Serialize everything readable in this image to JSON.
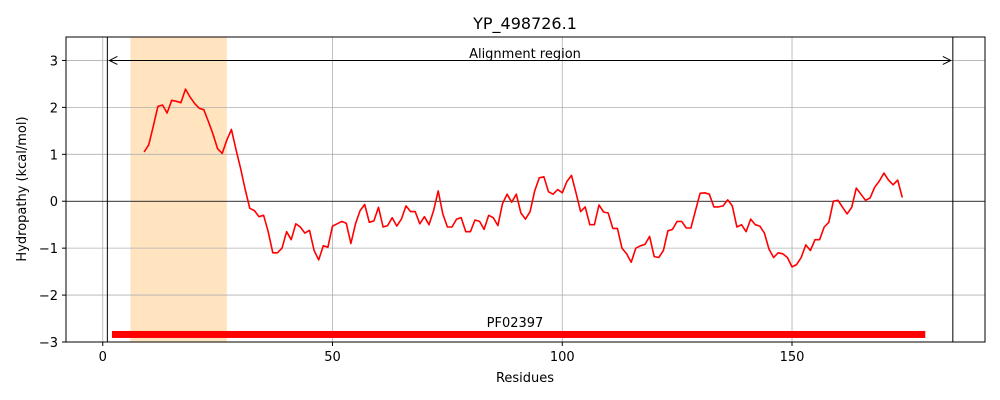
{
  "chart_data": {
    "type": "line",
    "title": "YP_498726.1",
    "xlabel": "Residues",
    "ylabel": "Hydropathy (kcal/mol)",
    "xlim": [
      -8,
      192
    ],
    "ylim": [
      -3,
      3.5
    ],
    "xticks": [
      0,
      50,
      100,
      150
    ],
    "yticks": [
      -3,
      -2,
      -1,
      0,
      1,
      2,
      3
    ],
    "ytick_labels": [
      "−3",
      "−2",
      "−1",
      "0",
      "1",
      "2",
      "3"
    ],
    "grid": true,
    "series": [
      {
        "color": "#ff0000",
        "x": [
          9,
          10,
          11,
          12,
          13,
          14,
          15,
          16,
          17,
          18,
          19,
          20,
          21,
          22,
          23,
          24,
          25,
          26,
          27,
          28,
          29,
          30,
          31,
          32,
          33,
          34,
          35,
          36,
          37,
          38,
          39,
          40,
          41,
          42,
          43,
          44,
          45,
          46,
          47,
          48,
          49,
          50,
          51,
          52,
          53,
          54,
          55,
          56,
          57,
          58,
          59,
          60,
          61,
          62,
          63,
          64,
          65,
          66,
          67,
          68,
          69,
          70,
          71,
          72,
          73,
          74,
          75,
          76,
          77,
          78,
          79,
          80,
          81,
          82,
          83,
          84,
          85,
          86,
          87,
          88,
          89,
          90,
          91,
          92,
          93,
          94,
          95,
          96,
          97,
          98,
          99,
          100,
          101,
          102,
          103,
          104,
          105,
          106,
          107,
          108,
          109,
          110,
          111,
          112,
          113,
          114,
          115,
          116,
          117,
          118,
          119,
          120,
          121,
          122,
          123,
          124,
          125,
          126,
          127,
          128,
          129,
          130,
          131,
          132,
          133,
          134,
          135,
          136,
          137,
          138,
          139,
          140,
          141,
          142,
          143,
          144,
          145,
          146,
          147,
          148,
          149,
          150,
          151,
          152,
          153,
          154,
          155,
          156,
          157,
          158,
          159,
          160,
          161,
          162,
          163,
          164,
          165,
          166,
          167,
          168,
          169,
          170,
          171,
          172,
          173,
          174
        ],
        "y": [
          1.05,
          1.2,
          1.6,
          2.02,
          2.05,
          1.88,
          2.15,
          2.13,
          2.1,
          2.39,
          2.22,
          2.08,
          1.98,
          1.95,
          1.7,
          1.43,
          1.12,
          1.02,
          1.3,
          1.53,
          1.1,
          0.7,
          0.25,
          -0.15,
          -0.2,
          -0.33,
          -0.3,
          -0.65,
          -1.1,
          -1.1,
          -1.0,
          -0.65,
          -0.82,
          -0.48,
          -0.55,
          -0.68,
          -0.62,
          -1.05,
          -1.25,
          -0.95,
          -0.98,
          -0.53,
          -0.48,
          -0.43,
          -0.47,
          -0.9,
          -0.48,
          -0.2,
          -0.07,
          -0.45,
          -0.42,
          -0.13,
          -0.55,
          -0.52,
          -0.35,
          -0.53,
          -0.38,
          -0.1,
          -0.22,
          -0.22,
          -0.48,
          -0.33,
          -0.5,
          -0.2,
          0.22,
          -0.27,
          -0.55,
          -0.55,
          -0.38,
          -0.35,
          -0.65,
          -0.65,
          -0.4,
          -0.43,
          -0.6,
          -0.3,
          -0.35,
          -0.52,
          -0.05,
          0.15,
          -0.02,
          0.15,
          -0.25,
          -0.38,
          -0.22,
          0.22,
          0.5,
          0.52,
          0.2,
          0.15,
          0.25,
          0.18,
          0.42,
          0.55,
          0.18,
          -0.22,
          -0.12,
          -0.5,
          -0.5,
          -0.08,
          -0.23,
          -0.25,
          -0.58,
          -0.58,
          -1.0,
          -1.12,
          -1.3,
          -1.0,
          -0.95,
          -0.92,
          -0.75,
          -1.18,
          -1.2,
          -1.05,
          -0.63,
          -0.6,
          -0.43,
          -0.43,
          -0.57,
          -0.57,
          -0.2,
          0.17,
          0.18,
          0.15,
          -0.12,
          -0.12,
          -0.1,
          0.03,
          -0.1,
          -0.55,
          -0.5,
          -0.65,
          -0.38,
          -0.5,
          -0.53,
          -0.68,
          -1.02,
          -1.2,
          -1.1,
          -1.12,
          -1.2,
          -1.4,
          -1.35,
          -1.2,
          -0.93,
          -1.05,
          -0.82,
          -0.82,
          -0.55,
          -0.45,
          0.0,
          0.02,
          -0.13,
          -0.27,
          -0.13,
          0.28,
          0.15,
          0.02,
          0.07,
          0.3,
          0.43,
          0.6,
          0.45,
          0.35,
          0.45,
          0.08
        ]
      }
    ],
    "shaded_region": {
      "x": [
        6,
        27
      ],
      "color": "#ffe4bf"
    },
    "vertical_lines": [
      1,
      185
    ],
    "alignment_region": {
      "label": "Alignment region",
      "x": [
        1,
        185
      ],
      "y": 3
    },
    "domain_bar": {
      "label": "PF02397",
      "x": [
        2,
        179
      ],
      "y": -2.85,
      "color": "#ff0000"
    },
    "zero_line": 0
  }
}
